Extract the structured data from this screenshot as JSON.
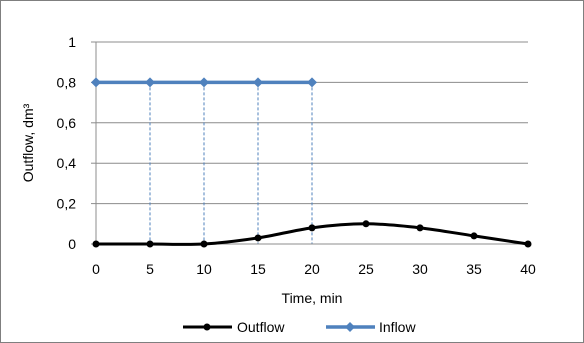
{
  "chart_data": {
    "type": "line",
    "xlabel": "Time, min",
    "ylabel": "Outflow, dm³",
    "x": [
      0,
      5,
      10,
      15,
      20,
      25,
      30,
      35,
      40
    ],
    "xlim": [
      0,
      40
    ],
    "ylim": [
      0,
      1
    ],
    "x_ticks": [
      "0",
      "5",
      "10",
      "15",
      "20",
      "25",
      "30",
      "35",
      "40"
    ],
    "y_ticks": [
      "0",
      "0,2",
      "0,4",
      "0,6",
      "0,8",
      "1"
    ],
    "y_tick_values": [
      0,
      0.2,
      0.4,
      0.6,
      0.8,
      1
    ],
    "grid": true,
    "legend_position": "bottom",
    "series": [
      {
        "name": "Outflow",
        "x": [
          0,
          5,
          10,
          15,
          20,
          25,
          30,
          35,
          40
        ],
        "values": [
          0,
          0,
          0,
          0.03,
          0.08,
          0.1,
          0.08,
          0.04,
          0
        ],
        "color": "#000000",
        "marker": "circle",
        "smooth": true
      },
      {
        "name": "Inflow",
        "x": [
          0,
          5,
          10,
          15,
          20
        ],
        "values": [
          0.8,
          0.8,
          0.8,
          0.8,
          0.8
        ],
        "color": "#4f81bd",
        "marker": "diamond",
        "drop_lines": true
      }
    ]
  }
}
